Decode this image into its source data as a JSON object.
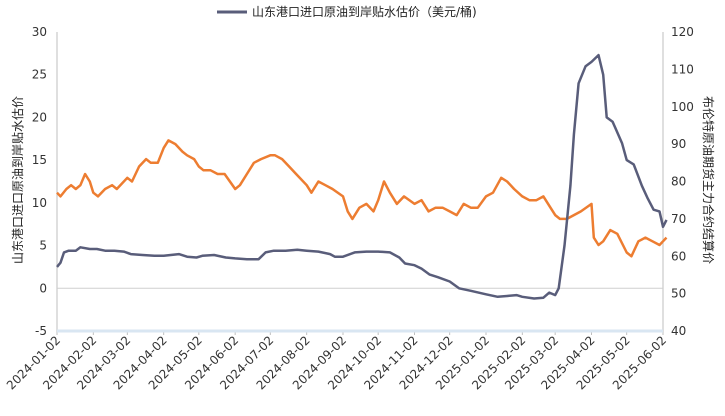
{
  "chart_data": {
    "type": "line",
    "legend": {
      "label": "山东港口进口原油到岸贴水估价（美元/桶)",
      "placement": "top-center"
    },
    "ylabel_left": "山东港口进口原油到岸贴水估价",
    "ylabel_right": "布伦特原油期货主力合约结算价",
    "left_axis": {
      "min": -5,
      "max": 30,
      "ticks": [
        -5,
        0,
        5,
        10,
        15,
        20,
        25,
        30
      ]
    },
    "right_axis": {
      "min": 40,
      "max": 120,
      "ticks": [
        40,
        50,
        60,
        70,
        80,
        90,
        100,
        110,
        120
      ]
    },
    "x_ticks": [
      "2024-01-02",
      "2024-02-02",
      "2024-03-02",
      "2024-04-02",
      "2024-05-02",
      "2024-06-02",
      "2024-07-02",
      "2024-08-02",
      "2024-09-02",
      "2024-10-02",
      "2024-11-02",
      "2024-12-02",
      "2025-01-02",
      "2025-02-02",
      "2025-03-02",
      "2025-04-02",
      "2025-05-02",
      "2025-06-02"
    ],
    "grid": false,
    "series": [
      {
        "name": "山东港口进口原油到岸贴水估价（美元/桶)",
        "axis": "left",
        "color": "#595d7a",
        "points": [
          [
            "2024-01-02",
            2.5
          ],
          [
            "2024-01-05",
            3.0
          ],
          [
            "2024-01-08",
            4.2
          ],
          [
            "2024-01-12",
            4.4
          ],
          [
            "2024-01-18",
            4.4
          ],
          [
            "2024-01-22",
            4.8
          ],
          [
            "2024-01-30",
            4.6
          ],
          [
            "2024-02-05",
            4.6
          ],
          [
            "2024-02-12",
            4.4
          ],
          [
            "2024-02-20",
            4.4
          ],
          [
            "2024-02-28",
            4.3
          ],
          [
            "2024-03-05",
            4.0
          ],
          [
            "2024-03-15",
            3.9
          ],
          [
            "2024-03-25",
            3.8
          ],
          [
            "2024-04-02",
            3.8
          ],
          [
            "2024-04-15",
            4.0
          ],
          [
            "2024-04-22",
            3.7
          ],
          [
            "2024-04-30",
            3.6
          ],
          [
            "2024-05-05",
            3.8
          ],
          [
            "2024-05-15",
            3.9
          ],
          [
            "2024-05-25",
            3.6
          ],
          [
            "2024-06-02",
            3.5
          ],
          [
            "2024-06-12",
            3.4
          ],
          [
            "2024-06-22",
            3.4
          ],
          [
            "2024-06-28",
            4.2
          ],
          [
            "2024-07-05",
            4.4
          ],
          [
            "2024-07-15",
            4.4
          ],
          [
            "2024-07-25",
            4.5
          ],
          [
            "2024-08-02",
            4.4
          ],
          [
            "2024-08-12",
            4.3
          ],
          [
            "2024-08-22",
            4.0
          ],
          [
            "2024-08-26",
            3.7
          ],
          [
            "2024-09-02",
            3.7
          ],
          [
            "2024-09-12",
            4.2
          ],
          [
            "2024-09-22",
            4.3
          ],
          [
            "2024-10-02",
            4.3
          ],
          [
            "2024-10-12",
            4.2
          ],
          [
            "2024-10-20",
            3.6
          ],
          [
            "2024-10-25",
            2.9
          ],
          [
            "2024-11-02",
            2.7
          ],
          [
            "2024-11-08",
            2.3
          ],
          [
            "2024-11-15",
            1.6
          ],
          [
            "2024-11-22",
            1.3
          ],
          [
            "2024-12-02",
            0.8
          ],
          [
            "2024-12-10",
            0.0
          ],
          [
            "2024-12-20",
            -0.3
          ],
          [
            "2025-01-02",
            -0.7
          ],
          [
            "2025-01-12",
            -1.0
          ],
          [
            "2025-01-20",
            -0.9
          ],
          [
            "2025-01-28",
            -0.8
          ],
          [
            "2025-02-02",
            -1.0
          ],
          [
            "2025-02-12",
            -1.2
          ],
          [
            "2025-02-20",
            -1.1
          ],
          [
            "2025-02-25",
            -0.5
          ],
          [
            "2025-03-02",
            -0.8
          ],
          [
            "2025-03-05",
            0.0
          ],
          [
            "2025-03-10",
            5.0
          ],
          [
            "2025-03-15",
            12.0
          ],
          [
            "2025-03-18",
            18.0
          ],
          [
            "2025-03-22",
            24.0
          ],
          [
            "2025-03-28",
            26.0
          ],
          [
            "2025-04-02",
            26.5
          ],
          [
            "2025-04-08",
            27.3
          ],
          [
            "2025-04-12",
            25.0
          ],
          [
            "2025-04-15",
            20.0
          ],
          [
            "2025-04-20",
            19.5
          ],
          [
            "2025-04-28",
            17.0
          ],
          [
            "2025-05-02",
            15.0
          ],
          [
            "2025-05-08",
            14.5
          ],
          [
            "2025-05-15",
            12.0
          ],
          [
            "2025-05-20",
            10.5
          ],
          [
            "2025-05-25",
            9.2
          ],
          [
            "2025-05-30",
            9.0
          ],
          [
            "2025-06-02",
            7.2
          ],
          [
            "2025-06-05",
            8.0
          ]
        ]
      },
      {
        "name": "",
        "axis": "right",
        "color": "#ed7d31",
        "points": [
          [
            "2024-01-02",
            77
          ],
          [
            "2024-01-05",
            76
          ],
          [
            "2024-01-10",
            78
          ],
          [
            "2024-01-14",
            79
          ],
          [
            "2024-01-18",
            78
          ],
          [
            "2024-01-22",
            79
          ],
          [
            "2024-01-26",
            82
          ],
          [
            "2024-01-30",
            80
          ],
          [
            "2024-02-02",
            77
          ],
          [
            "2024-02-06",
            76
          ],
          [
            "2024-02-12",
            78
          ],
          [
            "2024-02-18",
            79
          ],
          [
            "2024-02-22",
            78
          ],
          [
            "2024-03-02",
            81
          ],
          [
            "2024-03-06",
            80
          ],
          [
            "2024-03-12",
            84
          ],
          [
            "2024-03-18",
            86
          ],
          [
            "2024-03-22",
            85
          ],
          [
            "2024-03-28",
            85
          ],
          [
            "2024-04-02",
            89
          ],
          [
            "2024-04-06",
            91
          ],
          [
            "2024-04-12",
            90
          ],
          [
            "2024-04-18",
            88
          ],
          [
            "2024-04-22",
            87
          ],
          [
            "2024-04-28",
            86
          ],
          [
            "2024-05-02",
            84
          ],
          [
            "2024-05-06",
            83
          ],
          [
            "2024-05-12",
            83
          ],
          [
            "2024-05-18",
            82
          ],
          [
            "2024-05-24",
            82
          ],
          [
            "2024-06-02",
            78
          ],
          [
            "2024-06-06",
            79
          ],
          [
            "2024-06-12",
            82
          ],
          [
            "2024-06-18",
            85
          ],
          [
            "2024-06-24",
            86
          ],
          [
            "2024-07-02",
            87
          ],
          [
            "2024-07-06",
            87
          ],
          [
            "2024-07-12",
            86
          ],
          [
            "2024-07-18",
            84
          ],
          [
            "2024-07-24",
            82
          ],
          [
            "2024-08-02",
            79
          ],
          [
            "2024-08-06",
            77
          ],
          [
            "2024-08-12",
            80
          ],
          [
            "2024-08-18",
            79
          ],
          [
            "2024-08-24",
            78
          ],
          [
            "2024-09-02",
            76
          ],
          [
            "2024-09-06",
            72
          ],
          [
            "2024-09-10",
            70
          ],
          [
            "2024-09-16",
            73
          ],
          [
            "2024-09-22",
            74
          ],
          [
            "2024-09-28",
            72
          ],
          [
            "2024-10-02",
            75
          ],
          [
            "2024-10-07",
            80
          ],
          [
            "2024-10-12",
            77
          ],
          [
            "2024-10-18",
            74
          ],
          [
            "2024-10-24",
            76
          ],
          [
            "2024-11-02",
            74
          ],
          [
            "2024-11-08",
            75
          ],
          [
            "2024-11-14",
            72
          ],
          [
            "2024-11-20",
            73
          ],
          [
            "2024-11-26",
            73
          ],
          [
            "2024-12-02",
            72
          ],
          [
            "2024-12-08",
            71
          ],
          [
            "2024-12-14",
            74
          ],
          [
            "2024-12-20",
            73
          ],
          [
            "2024-12-26",
            73
          ],
          [
            "2025-01-02",
            76
          ],
          [
            "2025-01-08",
            77
          ],
          [
            "2025-01-15",
            81
          ],
          [
            "2025-01-20",
            80
          ],
          [
            "2025-01-26",
            78
          ],
          [
            "2025-02-02",
            76
          ],
          [
            "2025-02-08",
            75
          ],
          [
            "2025-02-14",
            75
          ],
          [
            "2025-02-20",
            76
          ],
          [
            "2025-02-26",
            73
          ],
          [
            "2025-03-02",
            71
          ],
          [
            "2025-03-06",
            70
          ],
          [
            "2025-03-12",
            70
          ],
          [
            "2025-03-18",
            71
          ],
          [
            "2025-03-24",
            72
          ],
          [
            "2025-04-02",
            74
          ],
          [
            "2025-04-04",
            65
          ],
          [
            "2025-04-08",
            63
          ],
          [
            "2025-04-12",
            64
          ],
          [
            "2025-04-18",
            67
          ],
          [
            "2025-04-24",
            66
          ],
          [
            "2025-05-02",
            61
          ],
          [
            "2025-05-06",
            60
          ],
          [
            "2025-05-12",
            64
          ],
          [
            "2025-05-18",
            65
          ],
          [
            "2025-05-24",
            64
          ],
          [
            "2025-05-30",
            63
          ],
          [
            "2025-06-02",
            64
          ],
          [
            "2025-06-05",
            65
          ]
        ]
      }
    ]
  }
}
